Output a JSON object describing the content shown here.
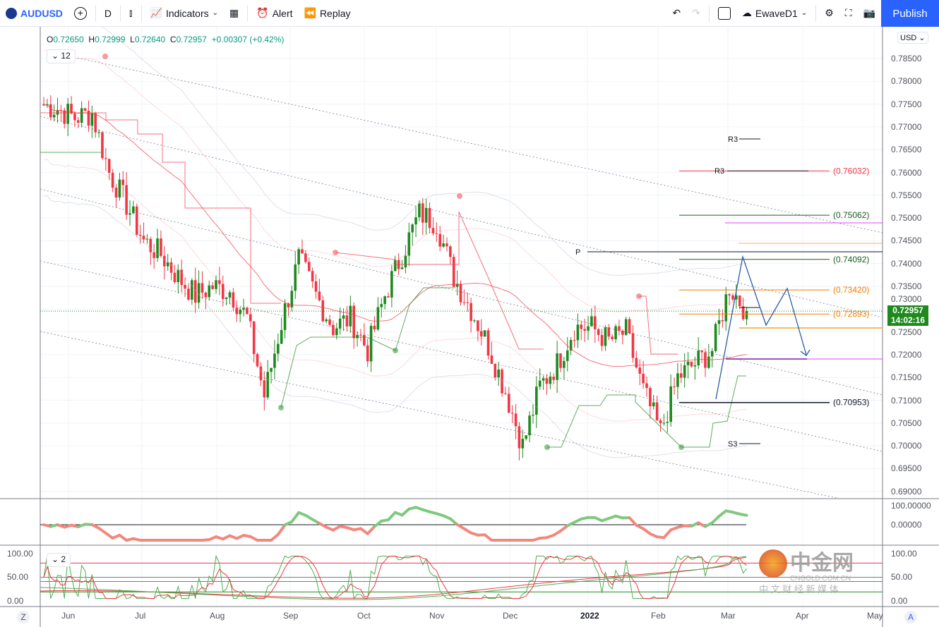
{
  "toolbar": {
    "symbol": "AUDUSD",
    "interval": "D",
    "indicators": "Indicators",
    "alert": "Alert",
    "replay": "Replay",
    "layout_name": "EwaveD1",
    "publish": "Publish"
  },
  "ohlc": {
    "o_label": "O",
    "o": "0.72650",
    "h_label": "H",
    "h": "0.72999",
    "l_label": "L",
    "l": "0.72640",
    "c_label": "C",
    "c": "0.72957",
    "change": "+0.00307 (+0.42%)"
  },
  "legend_count_main": "12",
  "legend_count_osc": "2",
  "currency": "USD",
  "price_axis": [
    "0.78500",
    "0.78000",
    "0.77500",
    "0.77000",
    "0.76500",
    "0.76000",
    "0.75500",
    "0.75000",
    "0.74500",
    "0.74000",
    "0.73500",
    "0.73000",
    "0.72500",
    "0.72000",
    "0.71500",
    "0.71000",
    "0.70500",
    "0.70000",
    "0.69500",
    "0.69000"
  ],
  "current_price": {
    "price": "0.72957",
    "countdown": "14:02:16",
    "color": "#1e8a1e"
  },
  "levels": [
    {
      "price": 0.76032,
      "label": "(0.76032)",
      "color": "#f23645"
    },
    {
      "price": 0.75062,
      "label": "(0.75062)",
      "color": "#1b5e20"
    },
    {
      "price": 0.74092,
      "label": "(0.74092)",
      "color": "#1b5e20"
    },
    {
      "price": 0.7342,
      "label": "(0.73420)",
      "color": "#f57c00"
    },
    {
      "price": 0.72893,
      "label": "(0.72893)",
      "color": "#f57c00"
    },
    {
      "price": 0.70953,
      "label": "(0.70953)",
      "color": "#131722"
    }
  ],
  "pivot_labels": {
    "r3_a": "R3",
    "r3_b": "R3",
    "p": "P",
    "s3": "S3"
  },
  "weekly_closes": [
    0.775,
    0.774,
    0.772,
    0.773,
    0.76,
    0.753,
    0.745,
    0.742,
    0.737,
    0.733,
    0.735,
    0.734,
    0.728,
    0.711,
    0.727,
    0.741,
    0.733,
    0.726,
    0.728,
    0.721,
    0.733,
    0.742,
    0.751,
    0.749,
    0.737,
    0.73,
    0.722,
    0.712,
    0.7,
    0.713,
    0.718,
    0.726,
    0.726,
    0.723,
    0.725,
    0.712,
    0.703,
    0.715,
    0.718,
    0.721,
    0.735,
    0.72957
  ],
  "osc1_axis": [
    "100.00000",
    "0.00000"
  ],
  "osc2_axis": [
    "100.00",
    "50.00",
    "0.00"
  ],
  "time_axis": [
    "Jun",
    "Jul",
    "Aug",
    "Sep",
    "Oct",
    "Nov",
    "Dec",
    "2022",
    "Feb",
    "Mar",
    "Apr",
    "May"
  ],
  "timezone_button": "Z",
  "auto_button": "A",
  "colors": {
    "up": "#1e8a1e",
    "down": "#f23645",
    "accent": "#2962ff"
  },
  "watermark": {
    "brand": "中金网",
    "domain": "CNGOLD.COM.CN",
    "tagline": "中 文 财 经 新 媒 体"
  }
}
